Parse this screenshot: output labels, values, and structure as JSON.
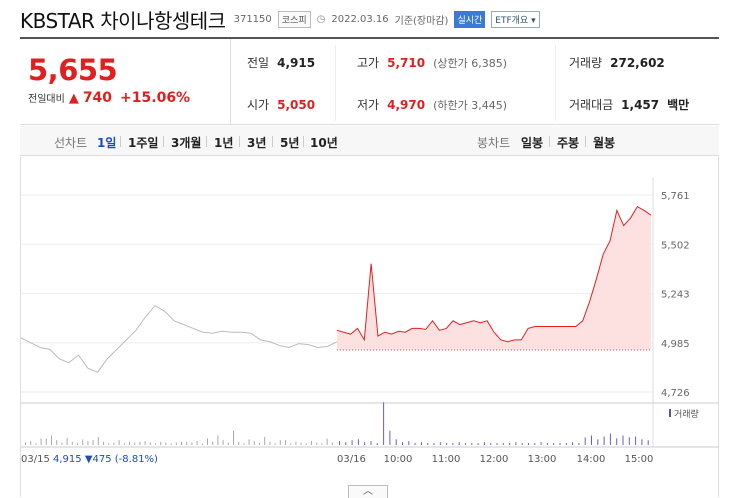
{
  "header": {
    "title": "KBSTAR 차이나항셍테크",
    "code": "371150",
    "market": "코스피",
    "date": "2022.03.16",
    "basis": "기준(장마감)",
    "realtime_label": "실시간",
    "etf_label": "ETF개요"
  },
  "price": {
    "current": "5,655",
    "diff_label": "전일대비",
    "diff_arrow": "▲",
    "diff": "740",
    "pct": "+15.06%"
  },
  "stats": {
    "prev_label": "전일",
    "prev": "4,915",
    "high_label": "고가",
    "high": "5,710",
    "high_limit": "(상한가 6,385)",
    "volume_label": "거래량",
    "volume": "272,602",
    "open_label": "시가",
    "open": "5,050",
    "low_label": "저가",
    "low": "4,970",
    "low_limit": "(하한가 3,445)",
    "amount_label": "거래대금",
    "amount": "1,457",
    "amount_unit": "백만"
  },
  "tabs": {
    "line_label": "선차트",
    "periods": [
      "1일",
      "1주일",
      "3개월",
      "1년",
      "3년",
      "5년",
      "10년"
    ],
    "candle_label": "봉차트",
    "candles": [
      "일봉",
      "주봉",
      "월봉"
    ]
  },
  "chart_data": {
    "type": "line",
    "y_ticks": [
      "5,761",
      "5,502",
      "5,243",
      "4,985",
      "4,726"
    ],
    "ylim": [
      4726,
      5761
    ],
    "x_ticks": [
      "03/16",
      "10:00",
      "11:00",
      "12:00",
      "13:00",
      "14:00",
      "15:00"
    ],
    "volume_legend": "거래량",
    "prev_day": {
      "label": "03/15",
      "close": "4,915",
      "arrow": "▼",
      "change": "475",
      "pct": "(-8.81%)"
    },
    "series": [
      {
        "values_prev_day": [
          5010,
          4985,
          4960,
          4950,
          4900,
          4880,
          4920,
          4850,
          4830,
          4900,
          4950,
          5000,
          5050,
          5120,
          5180,
          5150,
          5100,
          5080,
          5060,
          5040,
          5035,
          5045,
          5040,
          5040,
          5035,
          5000,
          4990,
          4970,
          4960,
          4980,
          4975,
          4960,
          4965,
          4990
        ],
        "values_today": [
          5050,
          5040,
          5030,
          5060,
          5000,
          5400,
          5020,
          5040,
          5030,
          5045,
          5040,
          5060,
          5060,
          5055,
          5100,
          5050,
          5060,
          5100,
          5080,
          5090,
          5100,
          5090,
          5100,
          5040,
          5000,
          4990,
          5000,
          5000,
          5060,
          5070,
          5070,
          5070,
          5070,
          5070,
          5070,
          5070,
          5100,
          5200,
          5320,
          5450,
          5520,
          5680,
          5600,
          5640,
          5700,
          5680,
          5655
        ],
        "baseline": 4915
      }
    ]
  }
}
